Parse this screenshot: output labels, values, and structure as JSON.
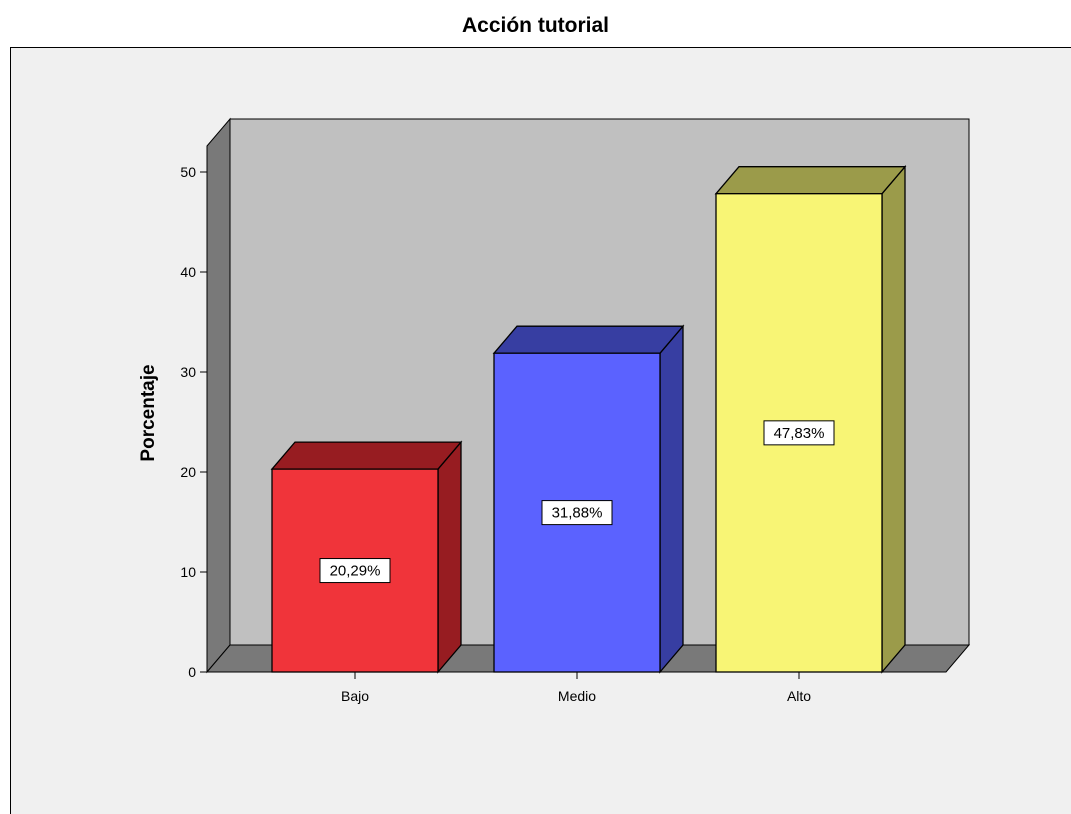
{
  "chart_data": {
    "type": "bar",
    "title": "Acción tutorial",
    "xlabel": "",
    "ylabel": "Porcentaje",
    "categories": [
      "Bajo",
      "Medio",
      "Alto"
    ],
    "values": [
      20.29,
      31.88,
      47.83
    ],
    "data_labels": [
      "20,29%",
      "31,88%",
      "47,83%"
    ],
    "yticks": [
      0,
      10,
      20,
      30,
      40,
      50
    ],
    "ytick_labels": [
      "0",
      "10",
      "20",
      "30",
      "40",
      "50"
    ],
    "ylim": [
      0,
      55
    ],
    "grid": false,
    "legend": "none",
    "style": "3d",
    "colors": {
      "bars": [
        "#f0343a",
        "#5b62ff",
        "#f8f575"
      ],
      "bar_tops": [
        "#971c21",
        "#373ea2",
        "#9b9b4a"
      ],
      "bar_sides": [
        "#971c21",
        "#373ea2",
        "#9b9b4a"
      ],
      "back_wall": "#c0c0c0",
      "side_wall": "#797979",
      "floor": "#797979",
      "frame_background": "#f0f0f0"
    }
  }
}
